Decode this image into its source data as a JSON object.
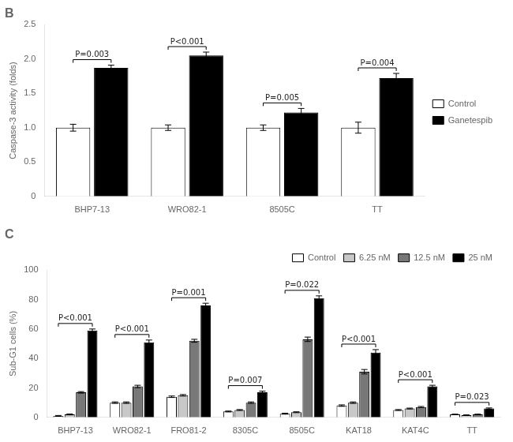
{
  "chart_data": [
    {
      "type": "bar",
      "title": "B",
      "categories": [
        "BHP7-13",
        "WRO82-1",
        "8505C",
        "TT"
      ],
      "series": [
        {
          "name": "Control",
          "color": "white",
          "values": [
            1.0,
            1.0,
            1.0,
            1.0
          ],
          "errors": [
            0.05,
            0.04,
            0.04,
            0.08
          ]
        },
        {
          "name": "Ganetespib",
          "color": "black",
          "values": [
            1.87,
            2.05,
            1.22,
            1.72
          ],
          "errors": [
            0.04,
            0.05,
            0.06,
            0.07
          ]
        }
      ],
      "ylabel": "Caspase-3 activity (folds)",
      "ylim": [
        0,
        2.5
      ],
      "yticks": [
        0,
        0.5,
        {
          "value": 1.0,
          "label": "1.0"
        },
        1.5,
        {
          "value": 2.0,
          "label": "2.0"
        },
        2.5
      ],
      "grid": false,
      "legend": "center right",
      "annotations": [
        "P=0.003",
        "P<0.001",
        "P=0.005",
        "P=0.004"
      ]
    },
    {
      "type": "bar",
      "title": "C",
      "categories": [
        "BHP7-13",
        "WRO82-1",
        "FRO81-2",
        "8305C",
        "8505C",
        "KAT18",
        "KAT4C",
        "TT"
      ],
      "series": [
        {
          "name": "Control",
          "color": "white",
          "values": [
            1.0,
            10.0,
            14.0,
            4.0,
            2.5,
            8.0,
            5.0,
            2.0
          ],
          "errors": [
            0.3,
            0.5,
            0.5,
            0.3,
            0.3,
            0.5,
            0.3,
            0.2
          ]
        },
        {
          "name": "6.25 nM",
          "color": "#c8c8c8",
          "values": [
            2.0,
            10.0,
            15.0,
            5.0,
            3.5,
            10.0,
            6.0,
            1.5
          ],
          "errors": [
            0.3,
            0.5,
            0.5,
            0.3,
            0.3,
            0.5,
            0.3,
            0.2
          ]
        },
        {
          "name": "12.5 nM",
          "color": "#787878",
          "values": [
            17.0,
            21.0,
            52.0,
            10.0,
            53.0,
            31.0,
            7.0,
            2.0
          ],
          "errors": [
            0.5,
            0.8,
            1.0,
            0.5,
            1.5,
            1.5,
            0.4,
            0.2
          ]
        },
        {
          "name": "25 nM",
          "color": "black",
          "values": [
            59.0,
            51.0,
            76.0,
            17.0,
            81.0,
            44.0,
            21.0,
            6.0
          ],
          "errors": [
            1.0,
            1.5,
            1.5,
            0.8,
            1.5,
            2.0,
            0.8,
            0.4
          ]
        }
      ],
      "ylabel": "Sub-G1 cells (%)",
      "ylim": [
        0,
        100
      ],
      "yticks": [
        0,
        20,
        40,
        60,
        80,
        100
      ],
      "grid": false,
      "legend": "upper right",
      "annotations": [
        "P<0.001",
        "P<0.001",
        "P=0.001",
        "P=0.007",
        "P=0.022",
        "P<0.001",
        "P<0.001",
        "P=0.023"
      ]
    }
  ]
}
